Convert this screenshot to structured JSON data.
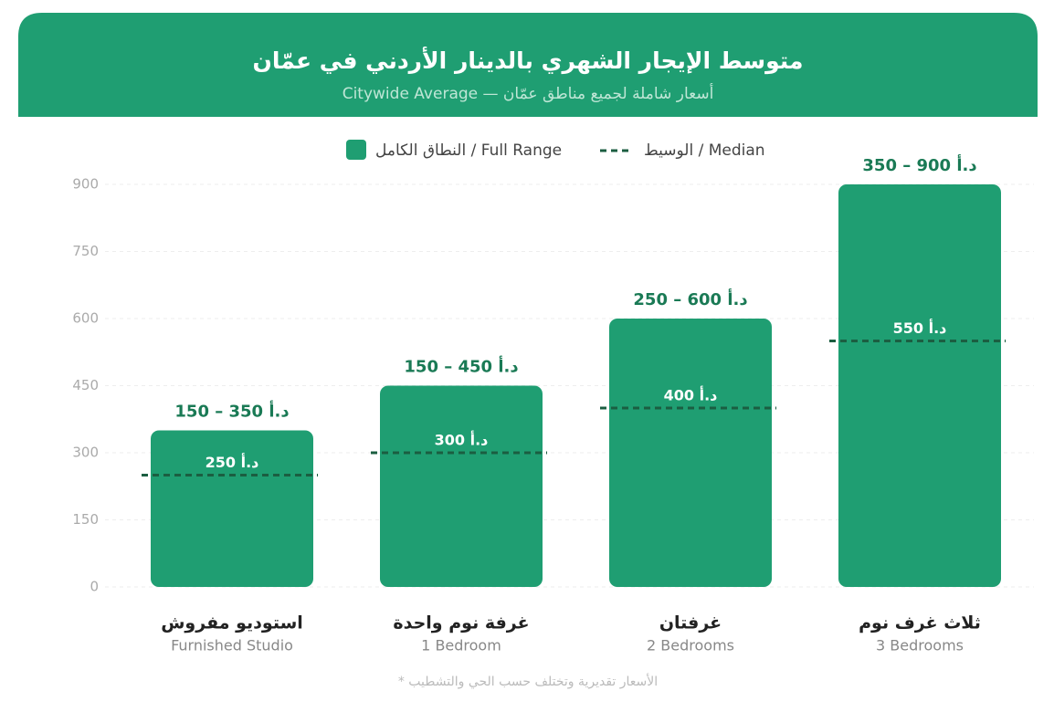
{
  "chart_data": {
    "type": "bar",
    "title": "متوسط الإيجار الشهري بالدينار الأردني في عمّان",
    "subtitle": "أسعار شاملة لجميع مناطق عمّان — Citywide Average",
    "categories": [
      "استوديو مفروش",
      "غرفة نوم واحدة",
      "غرفتان",
      "ثلاث غرف نوم"
    ],
    "category_subtitles": [
      "Furnished Studio",
      "1 Bedroom",
      "2 Bedrooms",
      "3 Bedrooms"
    ],
    "series": [
      {
        "name": "النطاق الكامل / Full Range",
        "color": "#1f9e72",
        "values": [
          350,
          450,
          600,
          900
        ],
        "value_labels": [
          "150 – 350 د.أ",
          "150 – 450 د.أ",
          "250 – 600 د.أ",
          "350 – 900 د.أ"
        ]
      },
      {
        "name": "الوسيط / Median",
        "color": "#1b5e41",
        "values": [
          250,
          300,
          400,
          550
        ],
        "value_labels": [
          "250 د.أ",
          "300 د.أ",
          "400 د.أ",
          "550 د.أ"
        ]
      }
    ],
    "ylim": [
      0,
      900
    ],
    "yticks": [
      0,
      150,
      300,
      450,
      600,
      750,
      900
    ],
    "grid": true,
    "footnote": "الأسعار تقديرية وتختلف حسب الحي والتشطيب *"
  }
}
